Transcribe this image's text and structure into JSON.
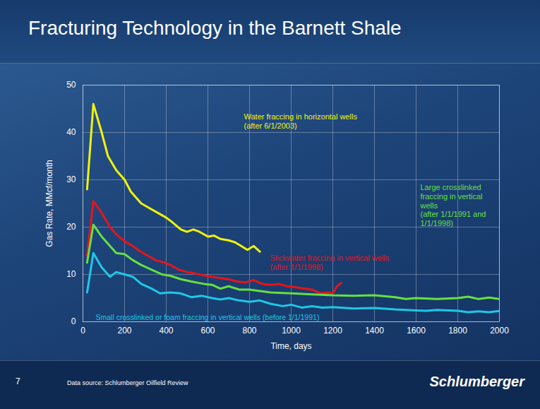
{
  "title": "Fracturing Technology in the Barnett Shale",
  "footer": {
    "page_number": "7",
    "source": "Data source: Schlumberger Oilfield Review",
    "logo": "Schlumberger"
  },
  "chart_data": {
    "type": "line",
    "x_label": "Time, days",
    "y_label": "Gas Rate, MMcf/month",
    "xlim": [
      0,
      2000
    ],
    "xticks": [
      0,
      200,
      400,
      600,
      800,
      1000,
      1200,
      1400,
      1600,
      1800,
      2000
    ],
    "ylim": [
      0,
      50
    ],
    "yticks": [
      0,
      10,
      20,
      30,
      40,
      50
    ],
    "grid": true,
    "series": [
      {
        "name": "Water fraccing in horizontal wells (after 6/1/2003)",
        "color": "#f2f20a",
        "x": [
          20,
          50,
          90,
          120,
          160,
          200,
          230,
          280,
          320,
          360,
          400,
          430,
          470,
          500,
          530,
          560,
          600,
          630,
          660,
          700,
          730,
          760,
          790,
          820,
          850
        ],
        "values": [
          28,
          46,
          40,
          35,
          32,
          30,
          27.5,
          25,
          24,
          23,
          22,
          21,
          19.5,
          19,
          19.5,
          19,
          18,
          18.2,
          17.5,
          17.2,
          16.8,
          16,
          15.2,
          16,
          14.8
        ]
      },
      {
        "name": "Slickwater fraccing in vertical wells (after 1/1/1998)",
        "color": "#e8141a",
        "x": [
          20,
          50,
          90,
          130,
          160,
          200,
          240,
          270,
          310,
          350,
          390,
          420,
          460,
          500,
          540,
          580,
          620,
          660,
          700,
          740,
          780,
          820,
          860,
          900,
          940,
          980,
          1020,
          1060,
          1100,
          1140,
          1180,
          1200,
          1220,
          1240
        ],
        "values": [
          14,
          25.5,
          23,
          20,
          18.5,
          17,
          16,
          15,
          14,
          13,
          12.5,
          12,
          11,
          10.5,
          10.2,
          9.8,
          9.5,
          9.2,
          9,
          8.5,
          8.3,
          8.8,
          8,
          7.8,
          8,
          7.5,
          7.3,
          7,
          6.8,
          6,
          6.2,
          6,
          7.5,
          8.2
        ]
      },
      {
        "name": "Large crosslinked fraccing in vertical wells (after 1/1/1991 and 1/1/1998)",
        "color": "#66e040",
        "x": [
          20,
          50,
          90,
          130,
          160,
          200,
          240,
          280,
          330,
          380,
          420,
          470,
          520,
          580,
          620,
          660,
          700,
          750,
          800,
          850,
          900,
          1000,
          1100,
          1200,
          1300,
          1400,
          1500,
          1550,
          1600,
          1700,
          1800,
          1850,
          1900,
          1950,
          2000
        ],
        "values": [
          12.5,
          20.5,
          18,
          16,
          14.5,
          14.3,
          13,
          12,
          11,
          10,
          9.7,
          9,
          8.5,
          8,
          7.8,
          7,
          7.5,
          6.8,
          6.8,
          6.5,
          6.2,
          6,
          5.8,
          5.6,
          5.5,
          5.6,
          5.2,
          4.8,
          5,
          4.8,
          5,
          5.3,
          4.8,
          5.1,
          4.8
        ]
      },
      {
        "name": "Small crosslinked or foam fraccing in vertical wells (before 1/1/1991)",
        "color": "#1ec8e6",
        "x": [
          20,
          50,
          90,
          130,
          160,
          200,
          240,
          280,
          330,
          370,
          420,
          470,
          520,
          570,
          620,
          660,
          700,
          750,
          800,
          850,
          900,
          960,
          1000,
          1050,
          1100,
          1150,
          1200,
          1300,
          1400,
          1500,
          1600,
          1650,
          1700,
          1800,
          1850,
          1900,
          1950,
          2000
        ],
        "values": [
          6.2,
          14.5,
          11.5,
          9.5,
          10.5,
          10,
          9.5,
          8,
          7,
          6,
          6.2,
          6,
          5.2,
          5.5,
          5,
          4.7,
          5,
          4.5,
          4.2,
          4.5,
          3.8,
          3.3,
          3.6,
          3,
          3.3,
          3,
          3.1,
          2.8,
          2.9,
          2.6,
          2.4,
          2.3,
          2.5,
          2.3,
          2,
          2.2,
          2,
          2.3
        ]
      }
    ]
  }
}
